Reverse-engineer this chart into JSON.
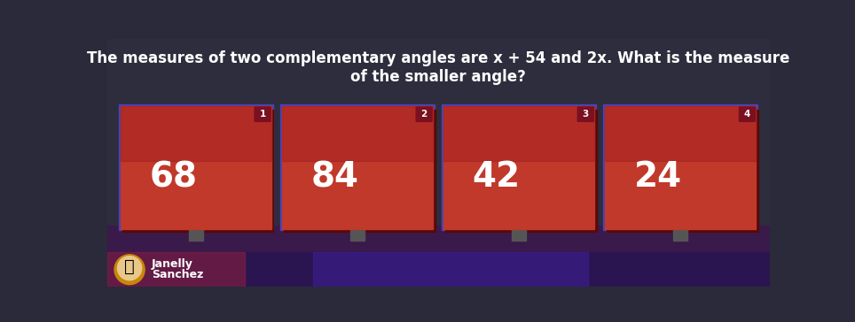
{
  "title_line1": "The measures of two complementary angles are x + 54 and 2x. What is the measure",
  "title_line2": "of the smaller angle?",
  "bg_top_color": "#2a2a3a",
  "bg_bottom_color": "#1a1a2e",
  "card_color": "#c0392b",
  "card_dark_color": "#8b1a1a",
  "card_border_color": "#5555aa",
  "answer_options": [
    "68",
    "84",
    "42",
    "24"
  ],
  "card_numbers": [
    "1",
    "2",
    "3",
    "4"
  ],
  "title_color": "#ffffff",
  "card_text_color": "#ffffff",
  "number_badge_color": "#7a1020",
  "bottom_bar_color": "#2a1a5e",
  "avatar_name_line1": "Janelly",
  "avatar_name_line2": "Sanchez"
}
